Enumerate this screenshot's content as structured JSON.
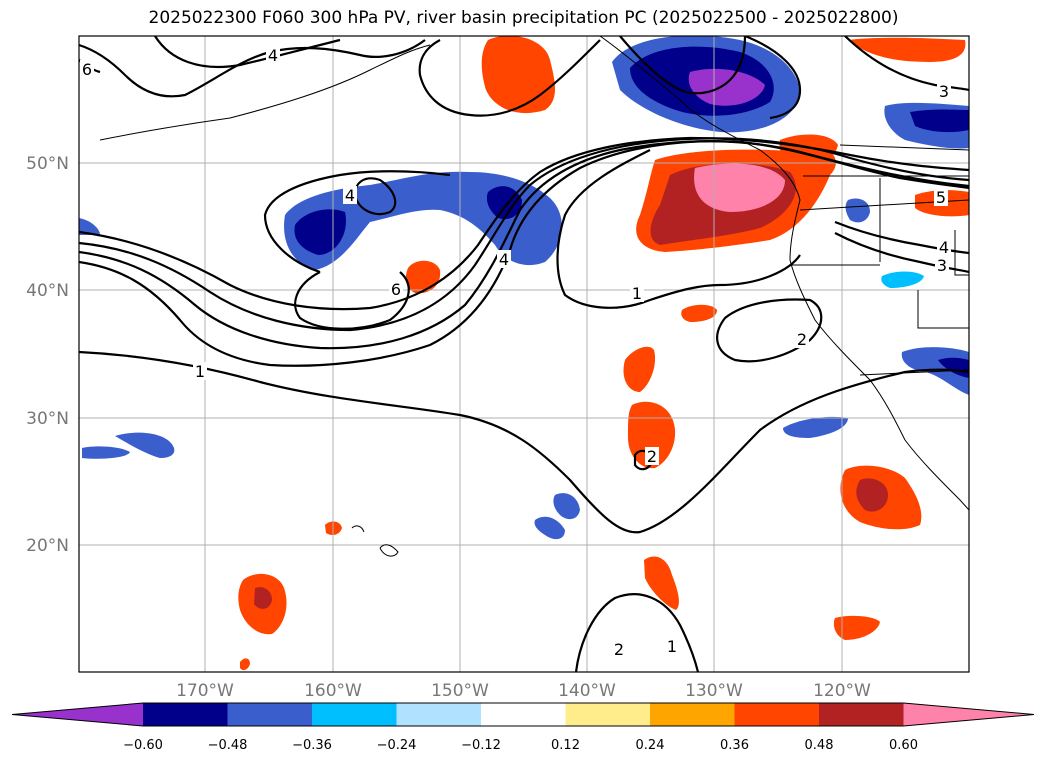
{
  "title": "2025022300 F060 300 hPa PV, river basin precipitation PC (2025022500 - 2025022800)",
  "lat_labels": [
    "50°N",
    "40°N",
    "30°N",
    "20°N"
  ],
  "lon_labels": [
    "170°W",
    "160°W",
    "150°W",
    "140°W",
    "130°W",
    "120°W"
  ],
  "contour_labels": [
    "6",
    "4",
    "4",
    "3",
    "5",
    "4",
    "3",
    "4",
    "6",
    "1",
    "2",
    "1",
    "2",
    "1",
    "2"
  ],
  "colorbar": {
    "ticks": [
      "−0.60",
      "−0.48",
      "−0.36",
      "−0.24",
      "−0.12",
      "0.12",
      "0.24",
      "0.36",
      "0.48",
      "0.60"
    ],
    "colors": [
      "#9932cc",
      "#00008b",
      "#3a5fcd",
      "#00bfff",
      "#b0e2ff",
      "#ffffff",
      "#ffec8b",
      "#ffa500",
      "#ff4500",
      "#b22222",
      "#ff82ab"
    ]
  }
}
